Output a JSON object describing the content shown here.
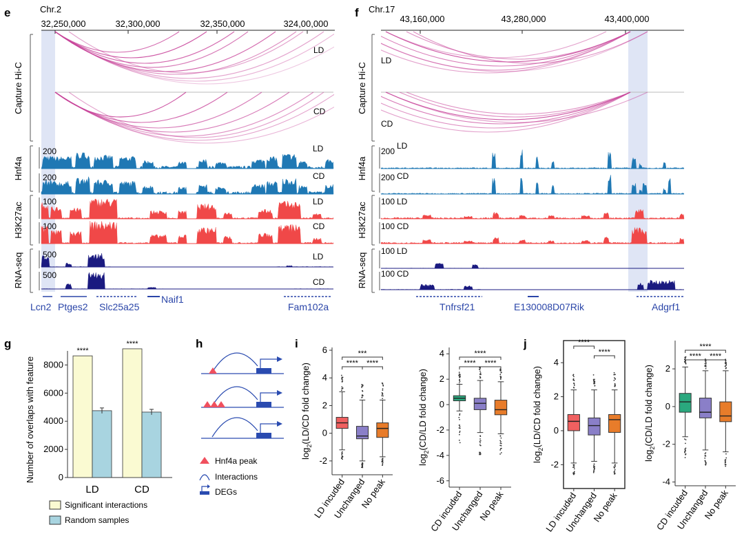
{
  "panels": {
    "e": {
      "letter": "e",
      "chrom": "Chr.2",
      "ticks": [
        "32,250,000",
        "32,300,000",
        "32,350,000",
        "324,00,000"
      ],
      "tracks": {
        "capture": "Capture Hi-C",
        "hnf4a": "Hnf4a",
        "h3k27ac": "H3K27ac",
        "rnaseq": "RNA-seq"
      },
      "conditions": {
        "ld": "LD",
        "cd": "CD"
      },
      "scales": {
        "hnf4a": "200",
        "h3k27ac": "100",
        "rnaseq": "500"
      },
      "genes": [
        "Lcn2",
        "Ptges2",
        "Slc25a25",
        "Naif1",
        "Fam102a"
      ]
    },
    "f": {
      "letter": "f",
      "chrom": "Chr.17",
      "ticks": [
        "43,160,000",
        "43,280,000",
        "43,400,000"
      ],
      "tracks": {
        "capture": "Capture Hi-C",
        "hnf4a": "Hnf4a",
        "h3k27ac": "H3K27ac",
        "rnaseq": "RNA-seq"
      },
      "conditions": {
        "ld": "LD",
        "cd": "CD"
      },
      "scales": {
        "hnf4a": "200",
        "h3k27ac": "100",
        "rnaseq": "100"
      },
      "genes": [
        "Tnfrsf21",
        "E130008D07Rik",
        "Adgrf1"
      ]
    },
    "h": {
      "letter": "h",
      "legend": [
        "Hnf4a peak",
        "Interactions",
        "DEGs"
      ]
    }
  },
  "chart_data": [
    {
      "panel": "g",
      "type": "bar",
      "title": "g",
      "ylabel": "Number of overlaps with feature",
      "categories": [
        "LD",
        "CD"
      ],
      "ylim": [
        0,
        9000
      ],
      "yticks": [
        0,
        2000,
        4000,
        6000,
        8000
      ],
      "series": [
        {
          "name": "Significant interactions",
          "values": [
            8650,
            9150
          ],
          "color": "#fafad2"
        },
        {
          "name": "Random samples",
          "values": [
            4750,
            4650
          ],
          "color": "#a8d4e0"
        }
      ],
      "significance": [
        "****",
        "****"
      ]
    },
    {
      "panel": "i",
      "type": "box",
      "title": "i",
      "ylabel": "log2(LD/CD fold change)",
      "categories": [
        "LD incuded",
        "Unchanged",
        "No peak"
      ],
      "ylim": [
        -3,
        6.2
      ],
      "yticks": [
        -2,
        0,
        2,
        4,
        6
      ],
      "colors": [
        "#f06060",
        "#8a7fc8",
        "#e87c2a"
      ],
      "boxes": [
        {
          "q1": 0.35,
          "median": 0.75,
          "q3": 1.15,
          "whisker_low": -1.2,
          "whisker_high": 3.0
        },
        {
          "q1": -0.4,
          "median": -0.2,
          "q3": 0.5,
          "whisker_low": -2.0,
          "whisker_high": 2.4
        },
        {
          "q1": -0.3,
          "median": 0.35,
          "q3": 0.75,
          "whisker_low": -1.7,
          "whisker_high": 2.4
        }
      ],
      "significance": [
        "***",
        "****",
        "****"
      ]
    },
    {
      "panel": "i2",
      "type": "box",
      "ylabel": "log2(CD/LD fold change)",
      "categories": [
        "CD incuded",
        "Unchanged",
        "No peak"
      ],
      "ylim": [
        -6.5,
        4.5
      ],
      "yticks": [
        -6,
        -4,
        -2,
        0,
        2,
        4
      ],
      "colors": [
        "#2aa87e",
        "#8a7fc8",
        "#e87c2a"
      ],
      "boxes": [
        {
          "q1": 0.3,
          "median": 0.5,
          "q3": 0.7,
          "whisker_low": -0.5,
          "whisker_high": 1.6
        },
        {
          "q1": -0.4,
          "median": 0.1,
          "q3": 0.5,
          "whisker_low": -2.2,
          "whisker_high": 1.9
        },
        {
          "q1": -0.8,
          "median": -0.4,
          "q3": 0.35,
          "whisker_low": -2.3,
          "whisker_high": 1.8
        }
      ],
      "significance": [
        "****",
        "****",
        "****"
      ]
    },
    {
      "panel": "j",
      "type": "box",
      "title": "j",
      "ylabel": "log2(LD/CD fold change)",
      "categories": [
        "LD incuded",
        "Unchanged",
        "No peak"
      ],
      "ylim": [
        -3.4,
        5.3
      ],
      "yticks": [
        -2,
        0,
        2,
        4
      ],
      "colors": [
        "#f06060",
        "#8a7fc8",
        "#e87c2a"
      ],
      "boxes": [
        {
          "q1": 0.0,
          "median": 0.55,
          "q3": 0.95,
          "whisker_low": -1.9,
          "whisker_high": 2.4
        },
        {
          "q1": -0.25,
          "median": 0.3,
          "q3": 0.75,
          "whisker_low": -1.8,
          "whisker_high": 2.4
        },
        {
          "q1": -0.1,
          "median": 0.65,
          "q3": 0.95,
          "whisker_low": -1.9,
          "whisker_high": 2.4
        }
      ],
      "significance": [
        "****",
        "****"
      ]
    },
    {
      "panel": "j2",
      "type": "box",
      "ylabel": "log2(CD/LD fold change)",
      "categories": [
        "CD incuded",
        "Unchanged",
        "No peak"
      ],
      "ylim": [
        -4.2,
        3.5
      ],
      "yticks": [
        -4,
        -2,
        0,
        2
      ],
      "colors": [
        "#2aa87e",
        "#8a7fc8",
        "#e87c2a"
      ],
      "boxes": [
        {
          "q1": -0.3,
          "median": 0.25,
          "q3": 0.7,
          "whisker_low": -1.6,
          "whisker_high": 2.1
        },
        {
          "q1": -0.6,
          "median": -0.3,
          "q3": 0.45,
          "whisker_low": -2.3,
          "whisker_high": 1.9
        },
        {
          "q1": -0.8,
          "median": -0.5,
          "q3": 0.25,
          "whisker_low": -2.4,
          "whisker_high": 1.9
        }
      ],
      "significance": [
        "****",
        "****",
        "****"
      ]
    }
  ]
}
